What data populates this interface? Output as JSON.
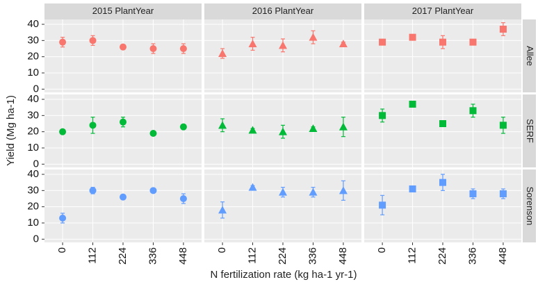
{
  "chart_data": {
    "type": "errorbar-points",
    "xlabel": "N fertilization rate (kg ha-1 yr-1)",
    "ylabel": "Yield (Mg ha-1)",
    "categories": [
      "0",
      "112",
      "224",
      "336",
      "448"
    ],
    "ylim": [
      -2,
      43
    ],
    "yticks": [
      0,
      10,
      20,
      30,
      40
    ],
    "grid": true,
    "columns": [
      {
        "name": "2015 PlantYear",
        "shape": "circle"
      },
      {
        "name": "2016 PlantYear",
        "shape": "triangle"
      },
      {
        "name": "2017 PlantYear",
        "shape": "square"
      }
    ],
    "rows": [
      {
        "name": "Allee",
        "color": "#F8766D",
        "panels": [
          {
            "values": [
              29,
              30,
              26,
              25,
              25
            ],
            "errors": [
              3,
              3,
              1,
              3,
              3
            ]
          },
          {
            "values": [
              22,
              28,
              27,
              32,
              28
            ],
            "errors": [
              3,
              4,
              4,
              4,
              1
            ]
          },
          {
            "values": [
              29,
              32,
              29,
              29,
              37
            ],
            "errors": [
              1,
              1,
              4,
              1,
              4
            ]
          }
        ]
      },
      {
        "name": "SERF",
        "color": "#00BA38",
        "panels": [
          {
            "values": [
              20,
              24,
              26,
              19,
              23
            ],
            "errors": [
              1,
              5,
              3,
              1,
              1
            ]
          },
          {
            "values": [
              24,
              21,
              20,
              22,
              23
            ],
            "errors": [
              4,
              1,
              4,
              1,
              6
            ]
          },
          {
            "values": [
              30,
              37,
              25,
              33,
              24
            ],
            "errors": [
              4,
              1,
              1,
              4,
              5
            ]
          }
        ]
      },
      {
        "name": "Sorenson",
        "color": "#619CFF",
        "panels": [
          {
            "values": [
              13,
              30,
              26,
              30,
              25
            ],
            "errors": [
              3,
              2,
              1,
              1,
              3
            ]
          },
          {
            "values": [
              18,
              32,
              29,
              29,
              30
            ],
            "errors": [
              5,
              1,
              3,
              3,
              6
            ]
          },
          {
            "values": [
              21,
              31,
              35,
              28,
              28
            ],
            "errors": [
              6,
              1,
              5,
              3,
              3
            ]
          }
        ]
      }
    ]
  }
}
